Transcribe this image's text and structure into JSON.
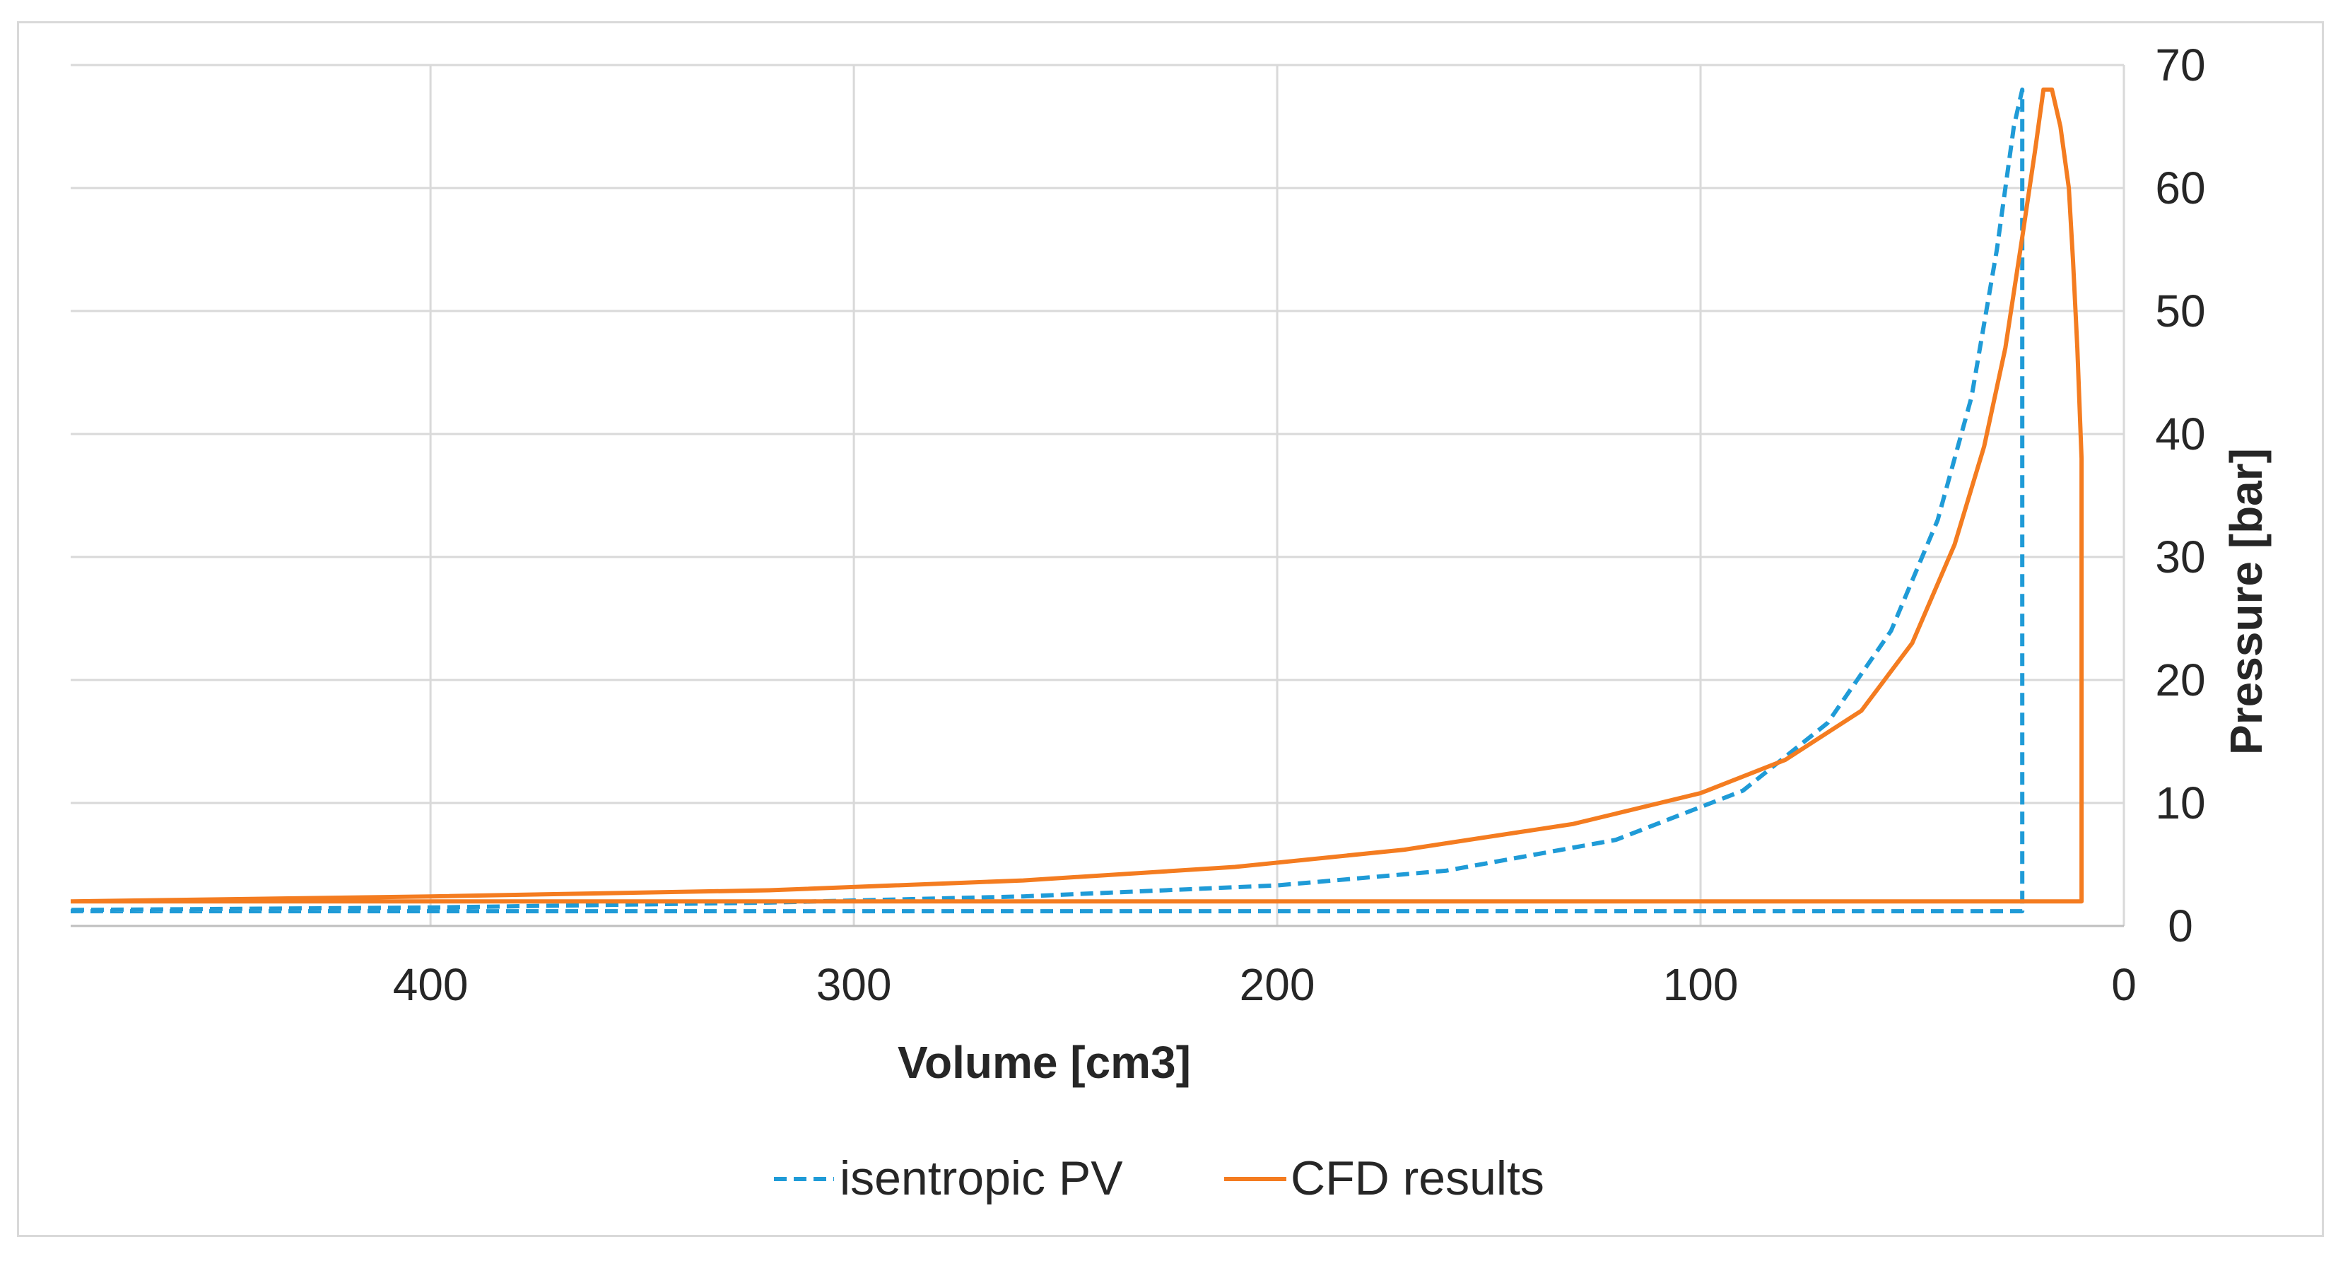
{
  "chart_data": {
    "type": "line",
    "title": "",
    "xlabel": "Volume [cm3]",
    "ylabel": "Pressure [bar]",
    "x_reversed": true,
    "xlim": [
      0,
      485
    ],
    "ylim": [
      0,
      70
    ],
    "x_ticks": [
      "400",
      "300",
      "200",
      "100",
      "0"
    ],
    "x_tick_values": [
      400,
      300,
      200,
      100,
      0
    ],
    "y_ticks": [
      "0",
      "10",
      "20",
      "30",
      "40",
      "50",
      "60",
      "70"
    ],
    "y_tick_values": [
      0,
      10,
      20,
      30,
      40,
      50,
      60,
      70
    ],
    "grid": true,
    "legend_position": "bottom",
    "series": [
      {
        "name": "isentropic PV",
        "color": "#1f9bd7",
        "dash": "dashed",
        "points": [
          [
            485,
            1.2
          ],
          [
            420,
            1.2
          ],
          [
            300,
            1.2
          ],
          [
            200,
            1.2
          ],
          [
            100,
            1.2
          ],
          [
            50,
            1.2
          ],
          [
            24,
            1.2
          ],
          [
            24,
            68
          ],
          [
            26,
            65
          ],
          [
            30,
            55
          ],
          [
            36,
            43
          ],
          [
            44,
            33
          ],
          [
            55,
            24
          ],
          [
            70,
            16.5
          ],
          [
            90,
            11
          ],
          [
            120,
            7
          ],
          [
            160,
            4.5
          ],
          [
            200,
            3.3
          ],
          [
            260,
            2.4
          ],
          [
            320,
            1.9
          ],
          [
            400,
            1.5
          ],
          [
            485,
            1.3
          ]
        ]
      },
      {
        "name": "CFD results",
        "color": "#f47c20",
        "dash": "solid",
        "points": [
          [
            485,
            2.0
          ],
          [
            300,
            2.0
          ],
          [
            100,
            2.0
          ],
          [
            30,
            2.0
          ],
          [
            10,
            2.0
          ],
          [
            10,
            38
          ],
          [
            11,
            47
          ],
          [
            12,
            54
          ],
          [
            13,
            60
          ],
          [
            15,
            65
          ],
          [
            17,
            68
          ],
          [
            19,
            68
          ],
          [
            21,
            63
          ],
          [
            24,
            56
          ],
          [
            28,
            47
          ],
          [
            33,
            39
          ],
          [
            40,
            31
          ],
          [
            50,
            23
          ],
          [
            62,
            17.5
          ],
          [
            80,
            13.5
          ],
          [
            100,
            10.8
          ],
          [
            130,
            8.3
          ],
          [
            170,
            6.2
          ],
          [
            210,
            4.8
          ],
          [
            260,
            3.7
          ],
          [
            320,
            2.9
          ],
          [
            400,
            2.4
          ],
          [
            485,
            2.0
          ]
        ]
      }
    ]
  }
}
